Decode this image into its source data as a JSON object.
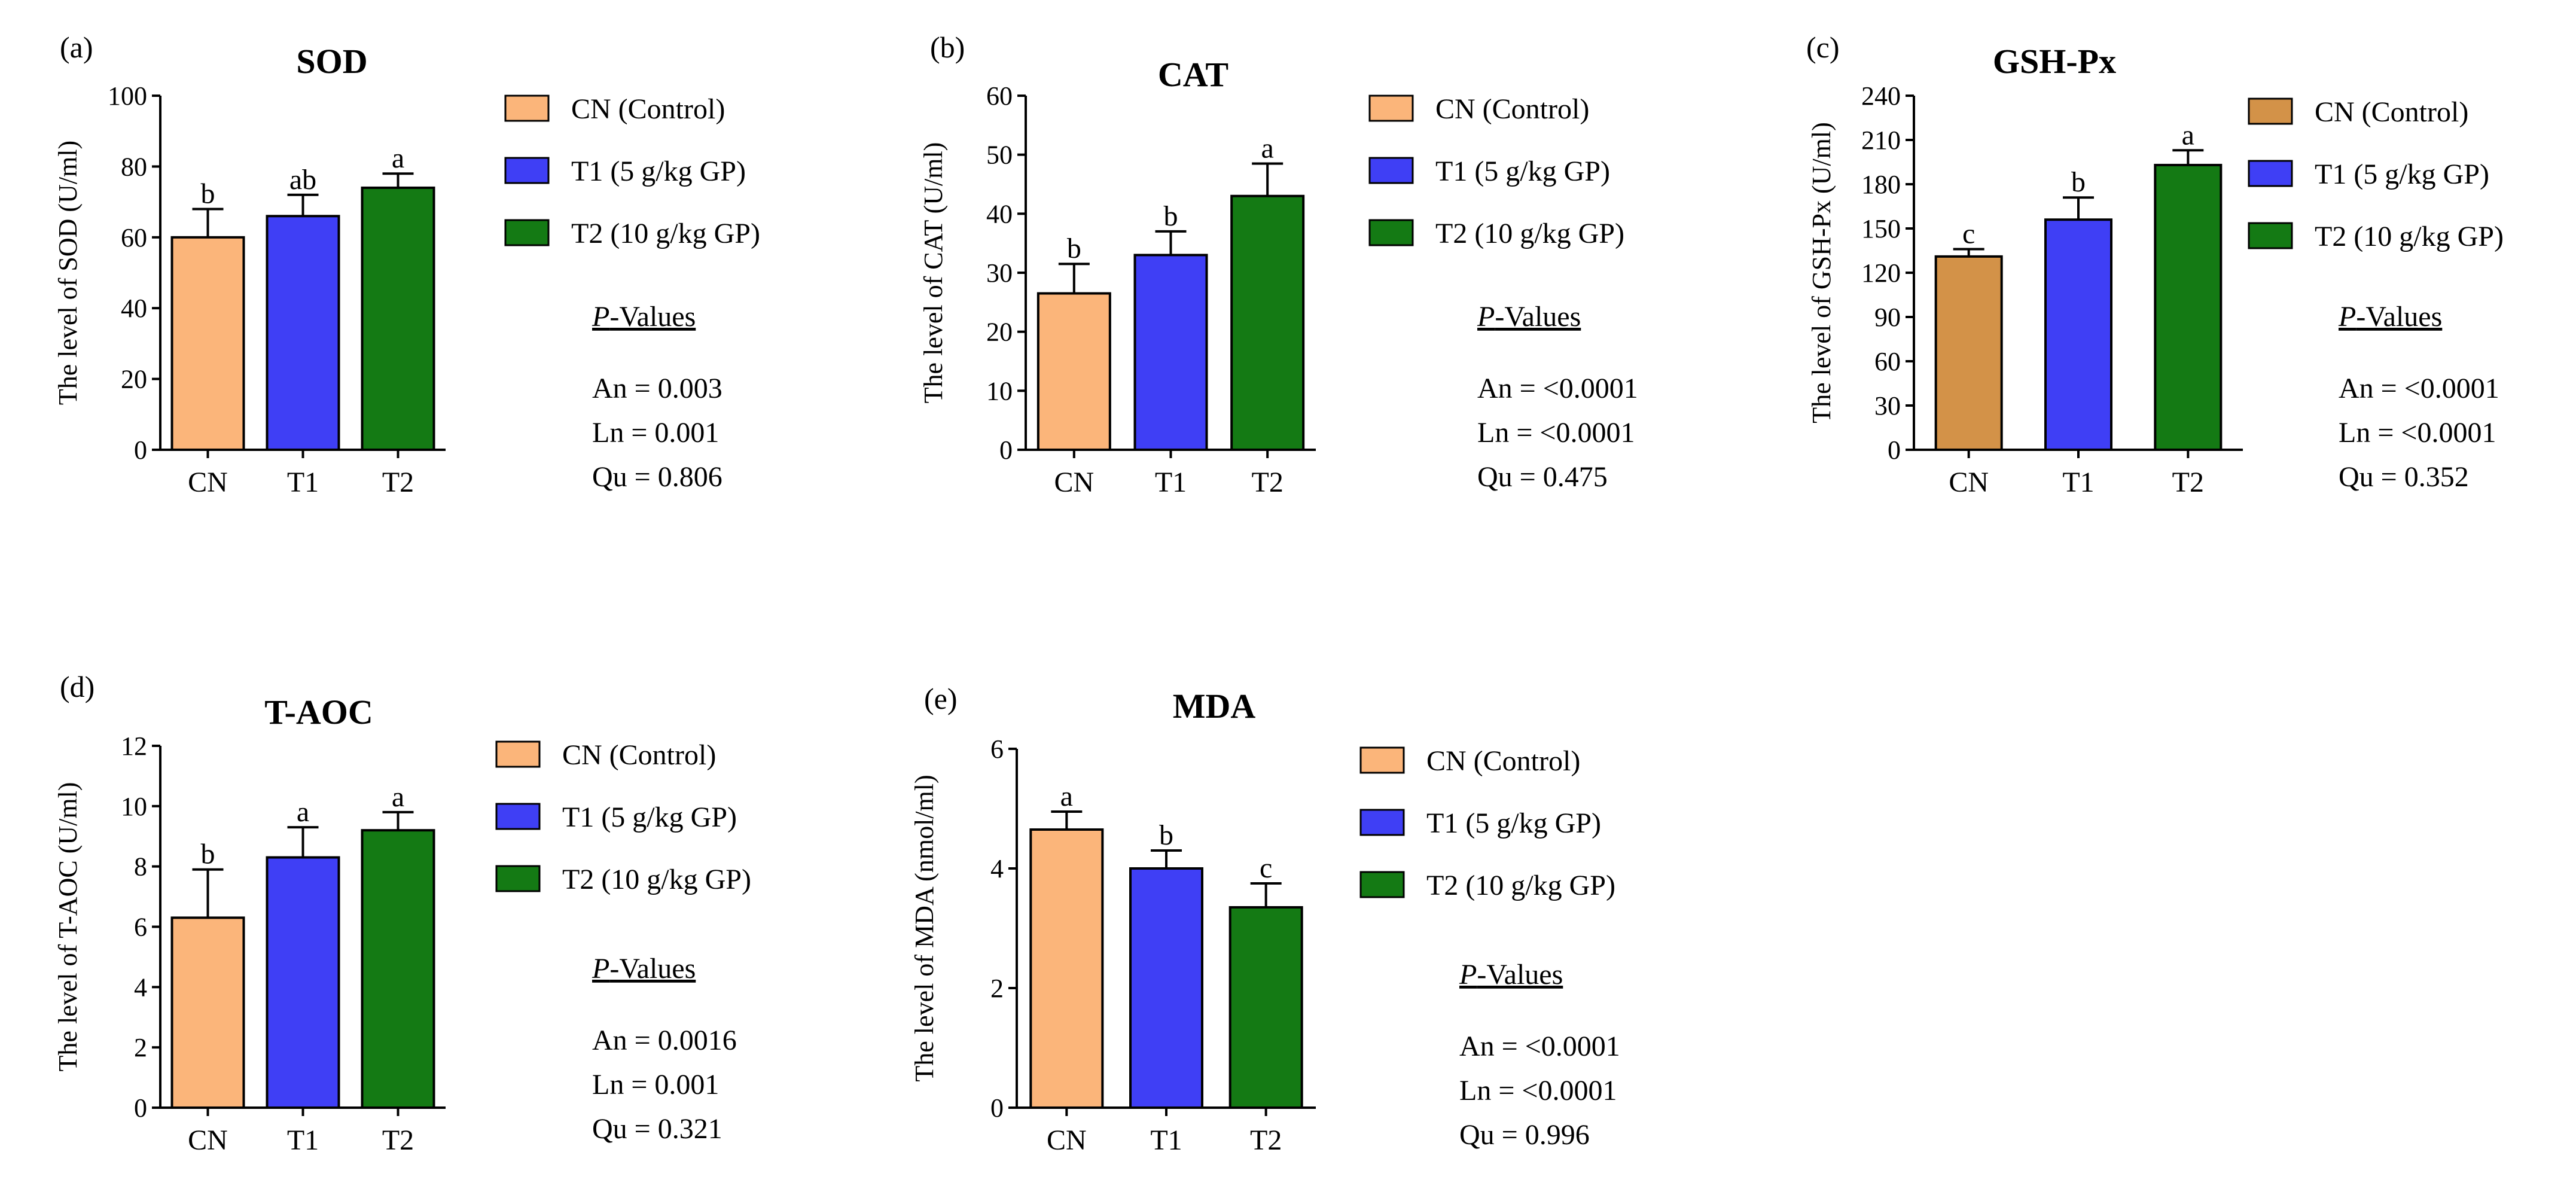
{
  "colors": {
    "cn": "#FBB57A",
    "cn_alt": "#D39248",
    "t1": "#3F3FF5",
    "t2": "#147A14",
    "axis": "#000000"
  },
  "chart_data": [
    {
      "panel": "(a)",
      "type": "bar",
      "title": "SOD",
      "ylabel": "The level of SOD (U/ml)",
      "ylim": [
        0,
        100
      ],
      "yticks": [
        0,
        20,
        40,
        60,
        80,
        100
      ],
      "categories": [
        "CN",
        "T1",
        "T2"
      ],
      "values": [
        60,
        66,
        74
      ],
      "errors": [
        8,
        6,
        4
      ],
      "sig": [
        "b",
        "ab",
        "a"
      ],
      "legend": [
        "CN (Control)",
        "T1 (5 g/kg GP)",
        "T2 (10 g/kg GP)"
      ],
      "pvalues_title": "P-Values",
      "pvalues": [
        "An = 0.003",
        "Ln = 0.001",
        "Qu = 0.806"
      ]
    },
    {
      "panel": "(b)",
      "type": "bar",
      "title": "CAT",
      "ylabel": "The level of CAT (U/ml)",
      "ylim": [
        0,
        60
      ],
      "yticks": [
        0,
        10,
        20,
        30,
        40,
        50,
        60
      ],
      "categories": [
        "CN",
        "T1",
        "T2"
      ],
      "values": [
        26.5,
        33,
        43
      ],
      "errors": [
        5,
        4,
        5.5
      ],
      "sig": [
        "b",
        "b",
        "a"
      ],
      "legend": [
        "CN (Control)",
        "T1 (5 g/kg GP)",
        "T2 (10 g/kg GP)"
      ],
      "pvalues_title": "P-Values",
      "pvalues": [
        "An = <0.0001",
        "Ln = <0.0001",
        "Qu = 0.475"
      ]
    },
    {
      "panel": "(c)",
      "type": "bar",
      "title": "GSH-Px",
      "ylabel": "The level of GSH-Px (U/ml)",
      "ylim": [
        0,
        240
      ],
      "yticks": [
        0,
        30,
        60,
        90,
        120,
        150,
        180,
        210,
        240
      ],
      "categories": [
        "CN",
        "T1",
        "T2"
      ],
      "values": [
        131,
        156,
        193
      ],
      "errors": [
        5,
        15,
        10
      ],
      "sig": [
        "c",
        "b",
        "a"
      ],
      "cn_color_key": "cn_alt",
      "legend": [
        "CN (Control)",
        "T1 (5 g/kg GP)",
        "T2 (10 g/kg GP)"
      ],
      "pvalues_title": "P-Values",
      "pvalues": [
        "An = <0.0001",
        "Ln = <0.0001",
        "Qu = 0.352"
      ]
    },
    {
      "panel": "(d)",
      "type": "bar",
      "title": "T-AOC",
      "ylabel": "The level of T-AOC (U/ml)",
      "ylim": [
        0,
        12
      ],
      "yticks": [
        0,
        2,
        4,
        6,
        8,
        10,
        12
      ],
      "categories": [
        "CN",
        "T1",
        "T2"
      ],
      "values": [
        6.3,
        8.3,
        9.2
      ],
      "errors": [
        1.6,
        1.0,
        0.6
      ],
      "sig": [
        "b",
        "a",
        "a"
      ],
      "legend": [
        "CN (Control)",
        "T1 (5 g/kg GP)",
        "T2 (10 g/kg GP)"
      ],
      "pvalues_title": "P-Values",
      "pvalues": [
        "An = 0.0016",
        "Ln = 0.001",
        "Qu = 0.321"
      ]
    },
    {
      "panel": "(e)",
      "type": "bar",
      "title": "MDA",
      "ylabel": "The level of MDA (nmol/ml)",
      "ylim": [
        0,
        6
      ],
      "yticks": [
        0,
        2,
        4,
        6
      ],
      "categories": [
        "CN",
        "T1",
        "T2"
      ],
      "values": [
        4.65,
        4.0,
        3.35
      ],
      "errors": [
        0.3,
        0.3,
        0.4
      ],
      "sig": [
        "a",
        "b",
        "c"
      ],
      "legend": [
        "CN (Control)",
        "T1 (5 g/kg GP)",
        "T2 (10 g/kg GP)"
      ],
      "pvalues_title": "P-Values",
      "pvalues": [
        "An = <0.0001",
        "Ln = <0.0001",
        "Qu = 0.996"
      ]
    }
  ]
}
